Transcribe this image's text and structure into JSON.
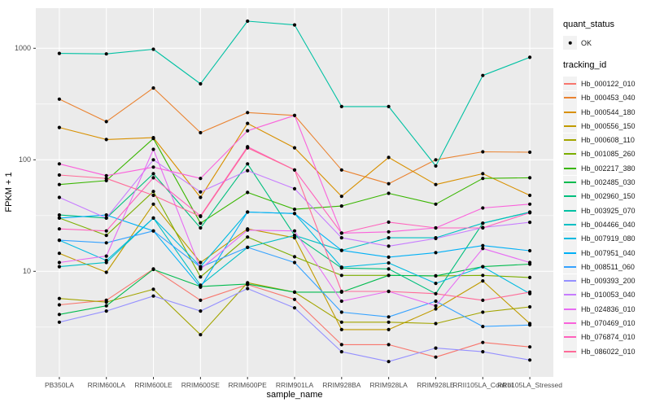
{
  "chart_data": {
    "type": "line",
    "title": "",
    "xlabel": "sample_name",
    "ylabel": "FPKM + 1",
    "x_categories": [
      "PB350LA",
      "RRIM600LA",
      "RRIM600LE",
      "RRIM600SE",
      "RRIM600PE",
      "RRIM901LA",
      "RRIM928BA",
      "RRIM928LA",
      "RRIM928LE",
      "RRII105LA_Control",
      "RRII105LA_Stressed"
    ],
    "y_scale": "log10",
    "y_ticks": [
      1000,
      100,
      10
    ],
    "ylim": [
      1.1,
      2300
    ],
    "grid": true,
    "legend_position": "right",
    "series": [
      {
        "name": "Hb_000122_010",
        "color": "#F8766D",
        "values": [
          5.0,
          5.5,
          10.5,
          5.5,
          7.6,
          5.6,
          2.2,
          2.2,
          1.7,
          2.3,
          2.1
        ]
      },
      {
        "name": "Hb_000453_040",
        "color": "#EA8331",
        "values": [
          350,
          220,
          440,
          175,
          265,
          250,
          81,
          61,
          100,
          118,
          117
        ]
      },
      {
        "name": "Hb_000544_180",
        "color": "#D89000",
        "values": [
          195,
          152,
          158,
          46,
          212,
          128,
          47,
          105,
          60,
          75,
          48
        ]
      },
      {
        "name": "Hb_000556_150",
        "color": "#C09B00",
        "values": [
          14.5,
          9.8,
          40,
          12,
          24,
          20,
          3.0,
          3.0,
          4.6,
          8.2,
          3.4
        ]
      },
      {
        "name": "Hb_000608_110",
        "color": "#A3A500",
        "values": [
          5.7,
          5.3,
          6.9,
          2.7,
          7.9,
          6.5,
          3.5,
          3.5,
          3.4,
          4.3,
          4.8
        ]
      },
      {
        "name": "Hb_001085_260",
        "color": "#7CAE00",
        "values": [
          30,
          21,
          52,
          8.9,
          20.3,
          13.5,
          9.2,
          9.2,
          9.1,
          9.2,
          8.8
        ]
      },
      {
        "name": "Hb_002217_380",
        "color": "#39B600",
        "values": [
          60,
          65,
          155,
          27,
          51,
          36,
          38.5,
          50,
          40,
          68,
          69
        ]
      },
      {
        "name": "Hb_002485_030",
        "color": "#00BB4E",
        "values": [
          4.1,
          4.9,
          10.4,
          7.3,
          7.7,
          6.5,
          6.5,
          9.2,
          9.1,
          11,
          11.6
        ]
      },
      {
        "name": "Hb_002960_150",
        "color": "#00BF7D",
        "values": [
          32,
          30,
          75,
          24.5,
          92,
          21,
          10.7,
          10.5,
          6.3,
          27,
          34
        ]
      },
      {
        "name": "Hb_003925_070",
        "color": "#00C1A3",
        "values": [
          900,
          890,
          980,
          480,
          1750,
          1620,
          300,
          300,
          88,
          570,
          830
        ]
      },
      {
        "name": "Hb_004466_040",
        "color": "#00BFC4",
        "values": [
          11,
          12,
          30,
          7.5,
          16.4,
          21,
          15.4,
          20,
          20,
          27,
          33.8
        ]
      },
      {
        "name": "Hb_007919_080",
        "color": "#00BAE0",
        "values": [
          19,
          12.5,
          30,
          11,
          34,
          33,
          10.9,
          11.9,
          7.8,
          11,
          6.3
        ]
      },
      {
        "name": "Hb_007951_040",
        "color": "#00B0F6",
        "values": [
          30,
          32,
          23,
          7.2,
          34,
          33,
          15.4,
          13.4,
          14.7,
          17,
          15.3
        ]
      },
      {
        "name": "Hb_008511_060",
        "color": "#35A2FF",
        "values": [
          19,
          18,
          23,
          10.9,
          16.4,
          12,
          4.3,
          3.9,
          5.4,
          3.2,
          3.3
        ]
      },
      {
        "name": "Hb_009393_200",
        "color": "#9590FF",
        "values": [
          3.5,
          4.4,
          6.0,
          4.4,
          7.0,
          4.7,
          1.9,
          1.55,
          2.05,
          1.9,
          1.6
        ]
      },
      {
        "name": "Hb_010053_040",
        "color": "#C77CFF",
        "values": [
          46,
          30,
          100,
          51.5,
          80,
          55,
          20,
          16.8,
          19.7,
          24.7,
          27.5
        ]
      },
      {
        "name": "Hb_024836_010",
        "color": "#E76BF3",
        "values": [
          12,
          13.7,
          124,
          10.5,
          23.4,
          23,
          5.4,
          6.6,
          4.9,
          16,
          12
        ]
      },
      {
        "name": "Hb_070469_010",
        "color": "#FA62DB",
        "values": [
          92,
          72,
          86,
          68,
          182,
          250,
          22,
          22.6,
          24.5,
          37,
          40
        ]
      },
      {
        "name": "Hb_076874_010",
        "color": "#FF62BC",
        "values": [
          24,
          23,
          69,
          31.4,
          131,
          81,
          22,
          27.6,
          24.5,
          24.5,
          33.5
        ]
      },
      {
        "name": "Hb_086022_010",
        "color": "#FF6A98",
        "values": [
          73,
          68,
          48,
          31,
          128,
          81,
          6.6,
          6.6,
          6.3,
          5.5,
          6.5
        ]
      }
    ]
  },
  "legend": {
    "quant_status_title": "quant_status",
    "quant_status_items": [
      {
        "label": "OK",
        "symbol": "point"
      }
    ],
    "tracking_id_title": "tracking_id"
  },
  "colors": {
    "panel_bg": "#EBEBEB",
    "grid_major": "#FFFFFF",
    "grid_minor": "#FFFFFF",
    "tick_mark": "#333333",
    "tick_label": "#4D4D4D",
    "axis_title": "#000000",
    "legend_key_bg": "#F2F2F2",
    "point": "#000000"
  }
}
